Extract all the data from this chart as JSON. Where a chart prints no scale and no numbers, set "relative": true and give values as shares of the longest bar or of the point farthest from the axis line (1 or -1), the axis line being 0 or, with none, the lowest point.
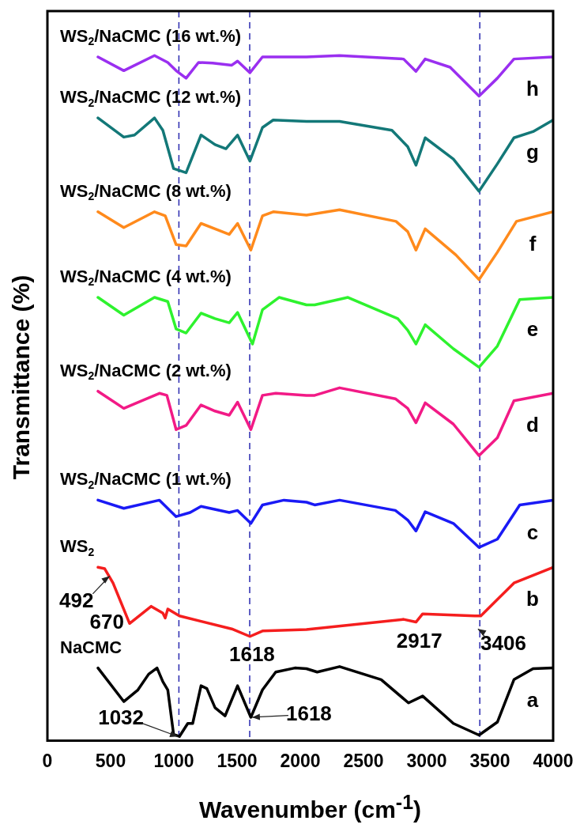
{
  "chart_data": {
    "type": "line",
    "relative": true,
    "xlabel": "Wavenumber (cm$^{-1}$)",
    "ylabel": "Transmittance (%)",
    "xlim": [
      0,
      4000
    ],
    "xticks": [
      0,
      500,
      1000,
      1500,
      2000,
      2500,
      3000,
      3500,
      4000
    ],
    "grid": false,
    "legend": false,
    "tick_labels": "x",
    "marker": "none",
    "line_style": "solid",
    "series": [
      {
        "name": "WS$_{2}$/NaCMC (16 wt.%)",
        "color": "#9a2ff0",
        "x": [
          400,
          604,
          847,
          952,
          1018,
          1097,
          1195,
          1307,
          1458,
          1504,
          1602,
          1701,
          2049,
          2311,
          2817,
          2915,
          2988,
          3185,
          3414,
          3559,
          3690,
          4000
        ],
        "values": [
          0.998,
          0.978,
          1.0,
          0.99,
          0.978,
          0.967,
          0.99,
          0.989,
          0.986,
          0.992,
          0.975,
          0.998,
          0.998,
          1.0,
          0.995,
          0.977,
          0.995,
          0.983,
          0.941,
          0.967,
          0.995,
          0.998
        ]
      },
      {
        "name": "WS$_{2}$/NaCMC (12 wt.%)",
        "color": "#137878",
        "x": [
          400,
          604,
          689,
          847,
          913,
          998,
          1097,
          1215,
          1326,
          1412,
          1504,
          1602,
          1701,
          1786,
          2049,
          2311,
          2725,
          2850,
          2915,
          2988,
          3211,
          3414,
          3559,
          3690,
          3841,
          4000
        ],
        "values": [
          0.909,
          0.881,
          0.884,
          0.909,
          0.891,
          0.835,
          0.829,
          0.884,
          0.87,
          0.864,
          0.884,
          0.846,
          0.895,
          0.906,
          0.904,
          0.904,
          0.891,
          0.867,
          0.84,
          0.88,
          0.849,
          0.802,
          0.842,
          0.88,
          0.889,
          0.906
        ]
      },
      {
        "name": "WS$_{2}$/NaCMC (8 wt.%)",
        "color": "#ff8a1c",
        "x": [
          400,
          604,
          847,
          932,
          1018,
          1097,
          1215,
          1326,
          1438,
          1504,
          1609,
          1701,
          1786,
          2049,
          2311,
          2757,
          2850,
          2915,
          2988,
          3231,
          3414,
          3559,
          3710,
          4000
        ],
        "values": [
          0.772,
          0.749,
          0.772,
          0.766,
          0.724,
          0.722,
          0.755,
          0.747,
          0.739,
          0.755,
          0.716,
          0.766,
          0.772,
          0.767,
          0.775,
          0.758,
          0.743,
          0.716,
          0.747,
          0.709,
          0.673,
          0.713,
          0.758,
          0.772
        ]
      },
      {
        "name": "WS$_{2}$/NaCMC (4 wt.%)",
        "color": "#2ef22e",
        "x": [
          400,
          604,
          847,
          952,
          1018,
          1097,
          1215,
          1326,
          1438,
          1504,
          1622,
          1701,
          1832,
          2049,
          2114,
          2377,
          2771,
          2850,
          2915,
          2988,
          3211,
          3414,
          3559,
          3736,
          4000
        ],
        "values": [
          0.647,
          0.621,
          0.647,
          0.641,
          0.601,
          0.595,
          0.624,
          0.616,
          0.61,
          0.625,
          0.579,
          0.629,
          0.647,
          0.636,
          0.636,
          0.647,
          0.616,
          0.599,
          0.579,
          0.607,
          0.572,
          0.545,
          0.576,
          0.644,
          0.647
        ]
      },
      {
        "name": "WS$_{2}$/NaCMC (2 wt.%)",
        "color": "#f21a86",
        "x": [
          400,
          604,
          886,
          945,
          1018,
          1097,
          1215,
          1326,
          1438,
          1504,
          1609,
          1701,
          1806,
          2049,
          2114,
          2311,
          2752,
          2850,
          2915,
          2988,
          3211,
          3414,
          3559,
          3690,
          4000
        ],
        "values": [
          0.51,
          0.485,
          0.507,
          0.504,
          0.454,
          0.46,
          0.49,
          0.481,
          0.475,
          0.494,
          0.454,
          0.504,
          0.507,
          0.504,
          0.504,
          0.515,
          0.499,
          0.485,
          0.464,
          0.493,
          0.462,
          0.416,
          0.442,
          0.496,
          0.507
        ]
      },
      {
        "name": "WS$_{2}$/NaCMC (1 wt.%)",
        "color": "#1a1af5",
        "x": [
          400,
          604,
          886,
          1018,
          1129,
          1215,
          1438,
          1504,
          1609,
          1701,
          1871,
          2049,
          2114,
          2311,
          2752,
          2850,
          2915,
          2988,
          3211,
          3414,
          3559,
          3736,
          4000
        ],
        "values": [
          0.351,
          0.339,
          0.351,
          0.327,
          0.333,
          0.342,
          0.333,
          0.336,
          0.317,
          0.344,
          0.351,
          0.348,
          0.344,
          0.351,
          0.336,
          0.322,
          0.306,
          0.334,
          0.317,
          0.282,
          0.294,
          0.344,
          0.351
        ]
      },
      {
        "name": "WS$_{2}$",
        "color": "#f51e1e",
        "x": [
          400,
          453,
          519,
          650,
          821,
          913,
          932,
          952,
          1044,
          1458,
          1602,
          1701,
          2049,
          2817,
          2915,
          2968,
          3381,
          3428,
          3690,
          4000
        ],
        "values": [
          0.253,
          0.251,
          0.23,
          0.171,
          0.196,
          0.186,
          0.179,
          0.192,
          0.182,
          0.163,
          0.152,
          0.16,
          0.162,
          0.177,
          0.173,
          0.185,
          0.182,
          0.182,
          0.23,
          0.253
        ]
      },
      {
        "name": "NaCMC",
        "color": "#000000",
        "x": [
          400,
          604,
          716,
          801,
          867,
          913,
          952,
          998,
          1044,
          1110,
          1149,
          1215,
          1261,
          1326,
          1405,
          1504,
          1609,
          1701,
          1806,
          1957,
          2049,
          2134,
          2311,
          2640,
          2856,
          2968,
          3211,
          3414,
          3559,
          3690,
          3841,
          4000
        ],
        "values": [
          0.106,
          0.057,
          0.074,
          0.097,
          0.106,
          0.086,
          0.074,
          0.009,
          0.006,
          0.025,
          0.025,
          0.08,
          0.076,
          0.048,
          0.036,
          0.08,
          0.034,
          0.074,
          0.1,
          0.106,
          0.105,
          0.1,
          0.108,
          0.089,
          0.055,
          0.065,
          0.025,
          0.008,
          0.027,
          0.089,
          0.105,
          0.106
        ]
      }
    ],
    "ref_lines": [
      {
        "axis": "x",
        "value": 1040,
        "color": "#2a2ab0",
        "line_style": "dashed"
      },
      {
        "axis": "x",
        "value": 1600,
        "color": "#2a2ab0",
        "line_style": "dashed"
      },
      {
        "axis": "x",
        "value": 3420,
        "color": "#2a2ab0",
        "line_style": "dashed"
      }
    ],
    "annotations": [
      "a",
      "b",
      "c",
      "d",
      "e",
      "f",
      "g",
      "h",
      {
        "text": "492",
        "x": 492,
        "y": 0.24
      },
      {
        "text": "670",
        "x": 670,
        "y": 0.171
      },
      {
        "text": "1618",
        "x": 1618,
        "y": 0.152
      },
      {
        "text": "2917",
        "x": 2917,
        "y": 0.173
      },
      {
        "text": "3406",
        "x": 3406,
        "y": 0.163
      },
      {
        "text": "1032",
        "x": 1032,
        "y": 0.006
      },
      {
        "text": "1618",
        "x": 1618,
        "y": 0.034
      }
    ]
  }
}
